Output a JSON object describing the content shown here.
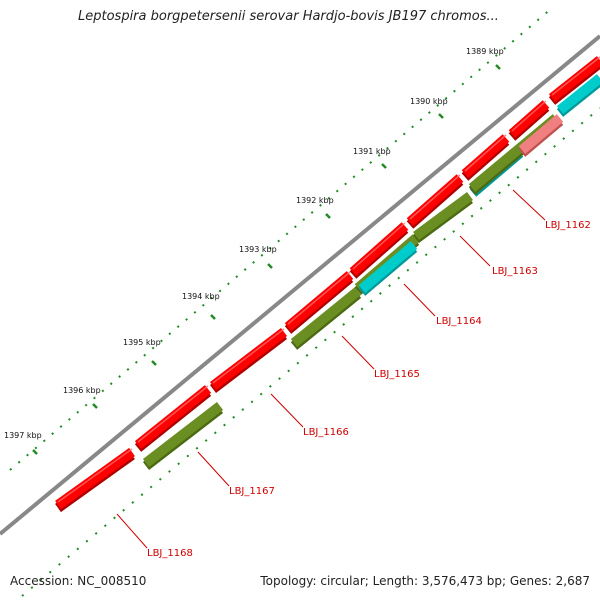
{
  "title": "Leptospira borgpetersenii serovar Hardjo-bovis JB197 chromos...",
  "footer": {
    "accession": "Accession: NC_008510",
    "summary": "Topology: circular; Length: 3,576,473 bp; Genes: 2,687"
  },
  "colors": {
    "backbone": "#888888",
    "forward_gene": "#ff0000",
    "reverse_gene_olive": "#6b8e23",
    "reverse_gene_cyan": "#00cccc",
    "reverse_gene_pink": "#f08080",
    "tick": "#228b22",
    "label": "#d00000"
  },
  "kbp_ticks": [
    {
      "label": "1389 kbp"
    },
    {
      "label": "1390 kbp"
    },
    {
      "label": "1391 kbp"
    },
    {
      "label": "1392 kbp"
    },
    {
      "label": "1393 kbp"
    },
    {
      "label": "1394 kbp"
    },
    {
      "label": "1395 kbp"
    },
    {
      "label": "1396 kbp"
    },
    {
      "label": "1397 kbp"
    }
  ],
  "gene_labels": [
    {
      "label": "LBJ_1162"
    },
    {
      "label": "LBJ_1163"
    },
    {
      "label": "LBJ_1164"
    },
    {
      "label": "LBJ_1165"
    },
    {
      "label": "LBJ_1166"
    },
    {
      "label": "LBJ_1167"
    },
    {
      "label": "LBJ_1168"
    }
  ]
}
